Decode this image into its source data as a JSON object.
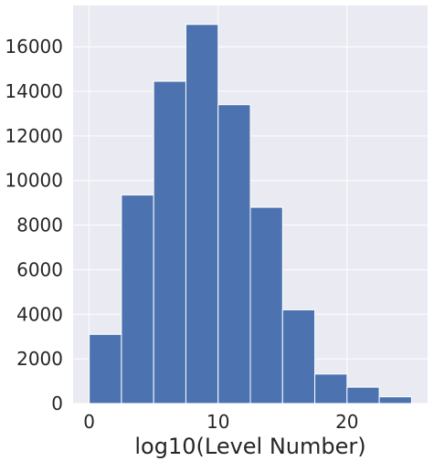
{
  "chart_data": {
    "type": "bar",
    "title": "",
    "xlabel": "log10(Level Number)",
    "ylabel": "",
    "bins": [
      {
        "x0": 0.0,
        "x1": 2.5,
        "value": 3100
      },
      {
        "x0": 2.5,
        "x1": 5.0,
        "value": 9350
      },
      {
        "x0": 5.0,
        "x1": 7.5,
        "value": 14450
      },
      {
        "x0": 7.5,
        "x1": 10.0,
        "value": 17000
      },
      {
        "x0": 10.0,
        "x1": 12.5,
        "value": 13400
      },
      {
        "x0": 12.5,
        "x1": 15.0,
        "value": 8800
      },
      {
        "x0": 15.0,
        "x1": 17.5,
        "value": 4200
      },
      {
        "x0": 17.5,
        "x1": 20.0,
        "value": 1320
      },
      {
        "x0": 20.0,
        "x1": 22.5,
        "value": 730
      },
      {
        "x0": 22.5,
        "x1": 25.0,
        "value": 300
      }
    ],
    "xlim": [
      -1.25,
      26.25
    ],
    "ylim": [
      0,
      17850
    ],
    "xticks": [
      0,
      10,
      20
    ],
    "yticks": [
      0,
      2000,
      4000,
      6000,
      8000,
      10000,
      12000,
      14000,
      16000
    ],
    "grid": true,
    "colors": {
      "bar": "#4c72b0",
      "background": "#eaeaf2",
      "grid": "#ffffff"
    }
  }
}
